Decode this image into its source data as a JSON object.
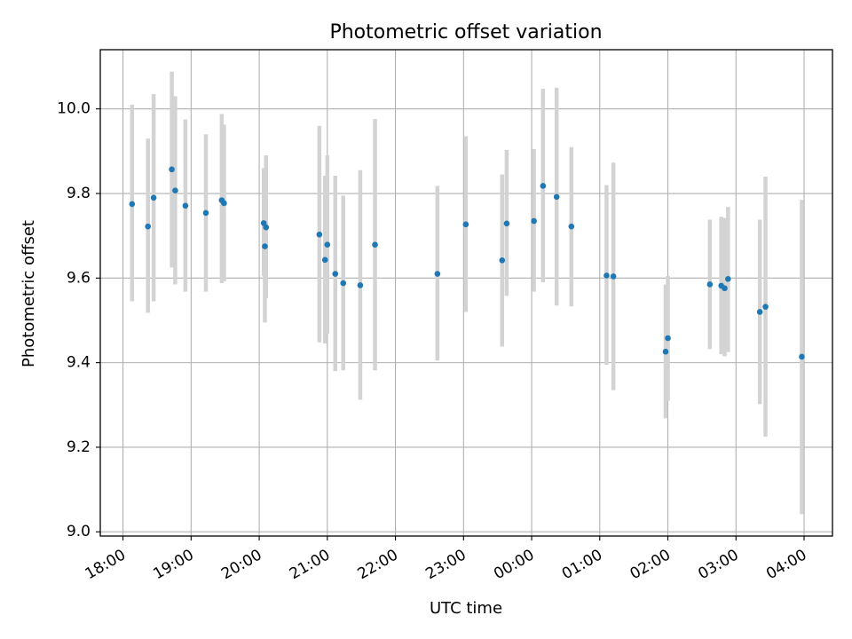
{
  "chart_data": {
    "type": "scatter",
    "title": "Photometric offset variation",
    "xlabel": "UTC time",
    "ylabel": "Photometric offset",
    "grid": true,
    "xlim": [
      "17:40",
      "04:25"
    ],
    "ylim": [
      8.99,
      10.14
    ],
    "xticks": [
      "18:00",
      "19:00",
      "20:00",
      "21:00",
      "22:00",
      "23:00",
      "00:00",
      "01:00",
      "02:00",
      "03:00",
      "04:00"
    ],
    "yticks": [
      "9.0",
      "9.2",
      "9.4",
      "9.6",
      "9.8",
      "10.0"
    ],
    "point_color": "#1f77b4",
    "errorbar_color": "#d3d3d3",
    "points": [
      {
        "t": "18:08",
        "y": 9.775,
        "lo": 9.545,
        "hi": 10.01
      },
      {
        "t": "18:22",
        "y": 9.722,
        "lo": 9.518,
        "hi": 9.93
      },
      {
        "t": "18:27",
        "y": 9.79,
        "lo": 9.545,
        "hi": 10.035
      },
      {
        "t": "18:43",
        "y": 9.857,
        "lo": 9.625,
        "hi": 10.088
      },
      {
        "t": "18:46",
        "y": 9.807,
        "lo": 9.585,
        "hi": 10.03
      },
      {
        "t": "18:55",
        "y": 9.771,
        "lo": 9.568,
        "hi": 9.975
      },
      {
        "t": "19:13",
        "y": 9.754,
        "lo": 9.568,
        "hi": 9.94
      },
      {
        "t": "19:27",
        "y": 9.784,
        "lo": 9.588,
        "hi": 9.988
      },
      {
        "t": "19:29",
        "y": 9.777,
        "lo": 9.592,
        "hi": 9.963
      },
      {
        "t": "20:04",
        "y": 9.73,
        "lo": 9.605,
        "hi": 9.86
      },
      {
        "t": "20:05",
        "y": 9.675,
        "lo": 9.495,
        "hi": 9.855
      },
      {
        "t": "20:06",
        "y": 9.72,
        "lo": 9.553,
        "hi": 9.89
      },
      {
        "t": "20:53",
        "y": 9.703,
        "lo": 9.448,
        "hi": 9.96
      },
      {
        "t": "20:58",
        "y": 9.643,
        "lo": 9.445,
        "hi": 9.842
      },
      {
        "t": "21:00",
        "y": 9.679,
        "lo": 9.468,
        "hi": 9.89
      },
      {
        "t": "21:07",
        "y": 9.61,
        "lo": 9.38,
        "hi": 9.842
      },
      {
        "t": "21:14",
        "y": 9.588,
        "lo": 9.382,
        "hi": 9.795
      },
      {
        "t": "21:29",
        "y": 9.583,
        "lo": 9.312,
        "hi": 9.855
      },
      {
        "t": "21:42",
        "y": 9.679,
        "lo": 9.382,
        "hi": 9.976
      },
      {
        "t": "22:37",
        "y": 9.61,
        "lo": 9.405,
        "hi": 9.818
      },
      {
        "t": "23:02",
        "y": 9.727,
        "lo": 9.52,
        "hi": 9.935
      },
      {
        "t": "23:34",
        "y": 9.642,
        "lo": 9.438,
        "hi": 9.845
      },
      {
        "t": "23:38",
        "y": 9.729,
        "lo": 9.558,
        "hi": 9.903
      },
      {
        "t": "00:02",
        "y": 9.735,
        "lo": 9.568,
        "hi": 9.905
      },
      {
        "t": "00:10",
        "y": 9.818,
        "lo": 9.59,
        "hi": 10.048
      },
      {
        "t": "00:22",
        "y": 9.792,
        "lo": 9.535,
        "hi": 10.05
      },
      {
        "t": "00:35",
        "y": 9.722,
        "lo": 9.533,
        "hi": 9.91
      },
      {
        "t": "01:06",
        "y": 9.606,
        "lo": 9.395,
        "hi": 9.82
      },
      {
        "t": "01:12",
        "y": 9.604,
        "lo": 9.335,
        "hi": 9.873
      },
      {
        "t": "01:58",
        "y": 9.426,
        "lo": 9.268,
        "hi": 9.585
      },
      {
        "t": "02:00",
        "y": 9.458,
        "lo": 9.31,
        "hi": 9.605
      },
      {
        "t": "02:37",
        "y": 9.585,
        "lo": 9.432,
        "hi": 9.738
      },
      {
        "t": "02:47",
        "y": 9.582,
        "lo": 9.42,
        "hi": 9.745
      },
      {
        "t": "02:50",
        "y": 9.576,
        "lo": 9.415,
        "hi": 9.742
      },
      {
        "t": "02:53",
        "y": 9.598,
        "lo": 9.425,
        "hi": 9.768
      },
      {
        "t": "03:21",
        "y": 9.52,
        "lo": 9.302,
        "hi": 9.738
      },
      {
        "t": "03:26",
        "y": 9.532,
        "lo": 9.225,
        "hi": 9.84
      },
      {
        "t": "03:58",
        "y": 9.414,
        "lo": 9.042,
        "hi": 9.785
      }
    ]
  }
}
